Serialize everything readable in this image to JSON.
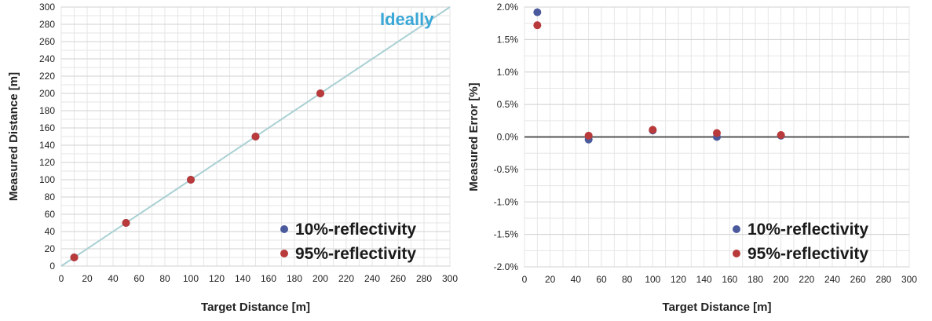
{
  "chart_data": [
    {
      "type": "scatter",
      "xlabel": "Target Distance [m]",
      "ylabel": "Measured Distance [m]",
      "xlim": [
        0,
        300
      ],
      "ylim": [
        0,
        300
      ],
      "x_ticks": [
        0,
        20,
        40,
        60,
        80,
        100,
        120,
        140,
        160,
        180,
        200,
        220,
        240,
        260,
        280,
        300
      ],
      "y_ticks": [
        0,
        20,
        40,
        60,
        80,
        100,
        120,
        140,
        160,
        180,
        200,
        220,
        240,
        260,
        280,
        300
      ],
      "x_tick_labels": [
        "0",
        "20",
        "40",
        "60",
        "80",
        "100",
        "120",
        "140",
        "160",
        "180",
        "200",
        "220",
        "240",
        "260",
        "280",
        "300"
      ],
      "y_tick_labels": [
        "0",
        "20",
        "40",
        "60",
        "80",
        "100",
        "120",
        "140",
        "160",
        "180",
        "200",
        "220",
        "240",
        "260",
        "280",
        "300"
      ],
      "grid": true,
      "legend_position": "bottom-right",
      "reference_line": {
        "label": "Ideally",
        "x": [
          0,
          300
        ],
        "y": [
          0,
          300
        ],
        "color": "#a9d0d4",
        "label_color": "#3aa7d6"
      },
      "series": [
        {
          "name": "10%-reflectivity",
          "color": "#4a5a9c",
          "x": [
            10,
            50,
            100,
            150,
            200
          ],
          "y": [
            10,
            50,
            100,
            150,
            200
          ]
        },
        {
          "name": "95%-reflectivity",
          "color": "#b83a3a",
          "x": [
            10,
            50,
            100,
            150,
            200
          ],
          "y": [
            10,
            50,
            100,
            150,
            200
          ]
        }
      ]
    },
    {
      "type": "scatter",
      "xlabel": "Target Distance [m]",
      "ylabel": "Measured Error [%]",
      "xlim": [
        0,
        300
      ],
      "ylim": [
        -2.0,
        2.0
      ],
      "x_ticks": [
        0,
        20,
        40,
        60,
        80,
        100,
        120,
        140,
        160,
        180,
        200,
        220,
        240,
        260,
        280,
        300
      ],
      "y_ticks": [
        -2.0,
        -1.5,
        -1.0,
        -0.5,
        0.0,
        0.5,
        1.0,
        1.5,
        2.0
      ],
      "x_tick_labels": [
        "0",
        "20",
        "40",
        "60",
        "80",
        "100",
        "120",
        "140",
        "160",
        "180",
        "200",
        "220",
        "240",
        "260",
        "280",
        "300"
      ],
      "y_tick_labels": [
        "-2.0%",
        "-1.5%",
        "-1.0%",
        "-0.5%",
        "0.0%",
        "0.5%",
        "1.0%",
        "1.5%",
        "2.0%"
      ],
      "grid": true,
      "legend_position": "bottom-right",
      "series": [
        {
          "name": "10%-reflectivity",
          "color": "#4a5a9c",
          "x": [
            10,
            50,
            100,
            150,
            200
          ],
          "y": [
            1.92,
            -0.04,
            0.1,
            0.0,
            0.02
          ]
        },
        {
          "name": "95%-reflectivity",
          "color": "#b83a3a",
          "x": [
            10,
            50,
            100,
            150,
            200
          ],
          "y": [
            1.72,
            0.02,
            0.11,
            0.06,
            0.03
          ]
        }
      ]
    }
  ]
}
